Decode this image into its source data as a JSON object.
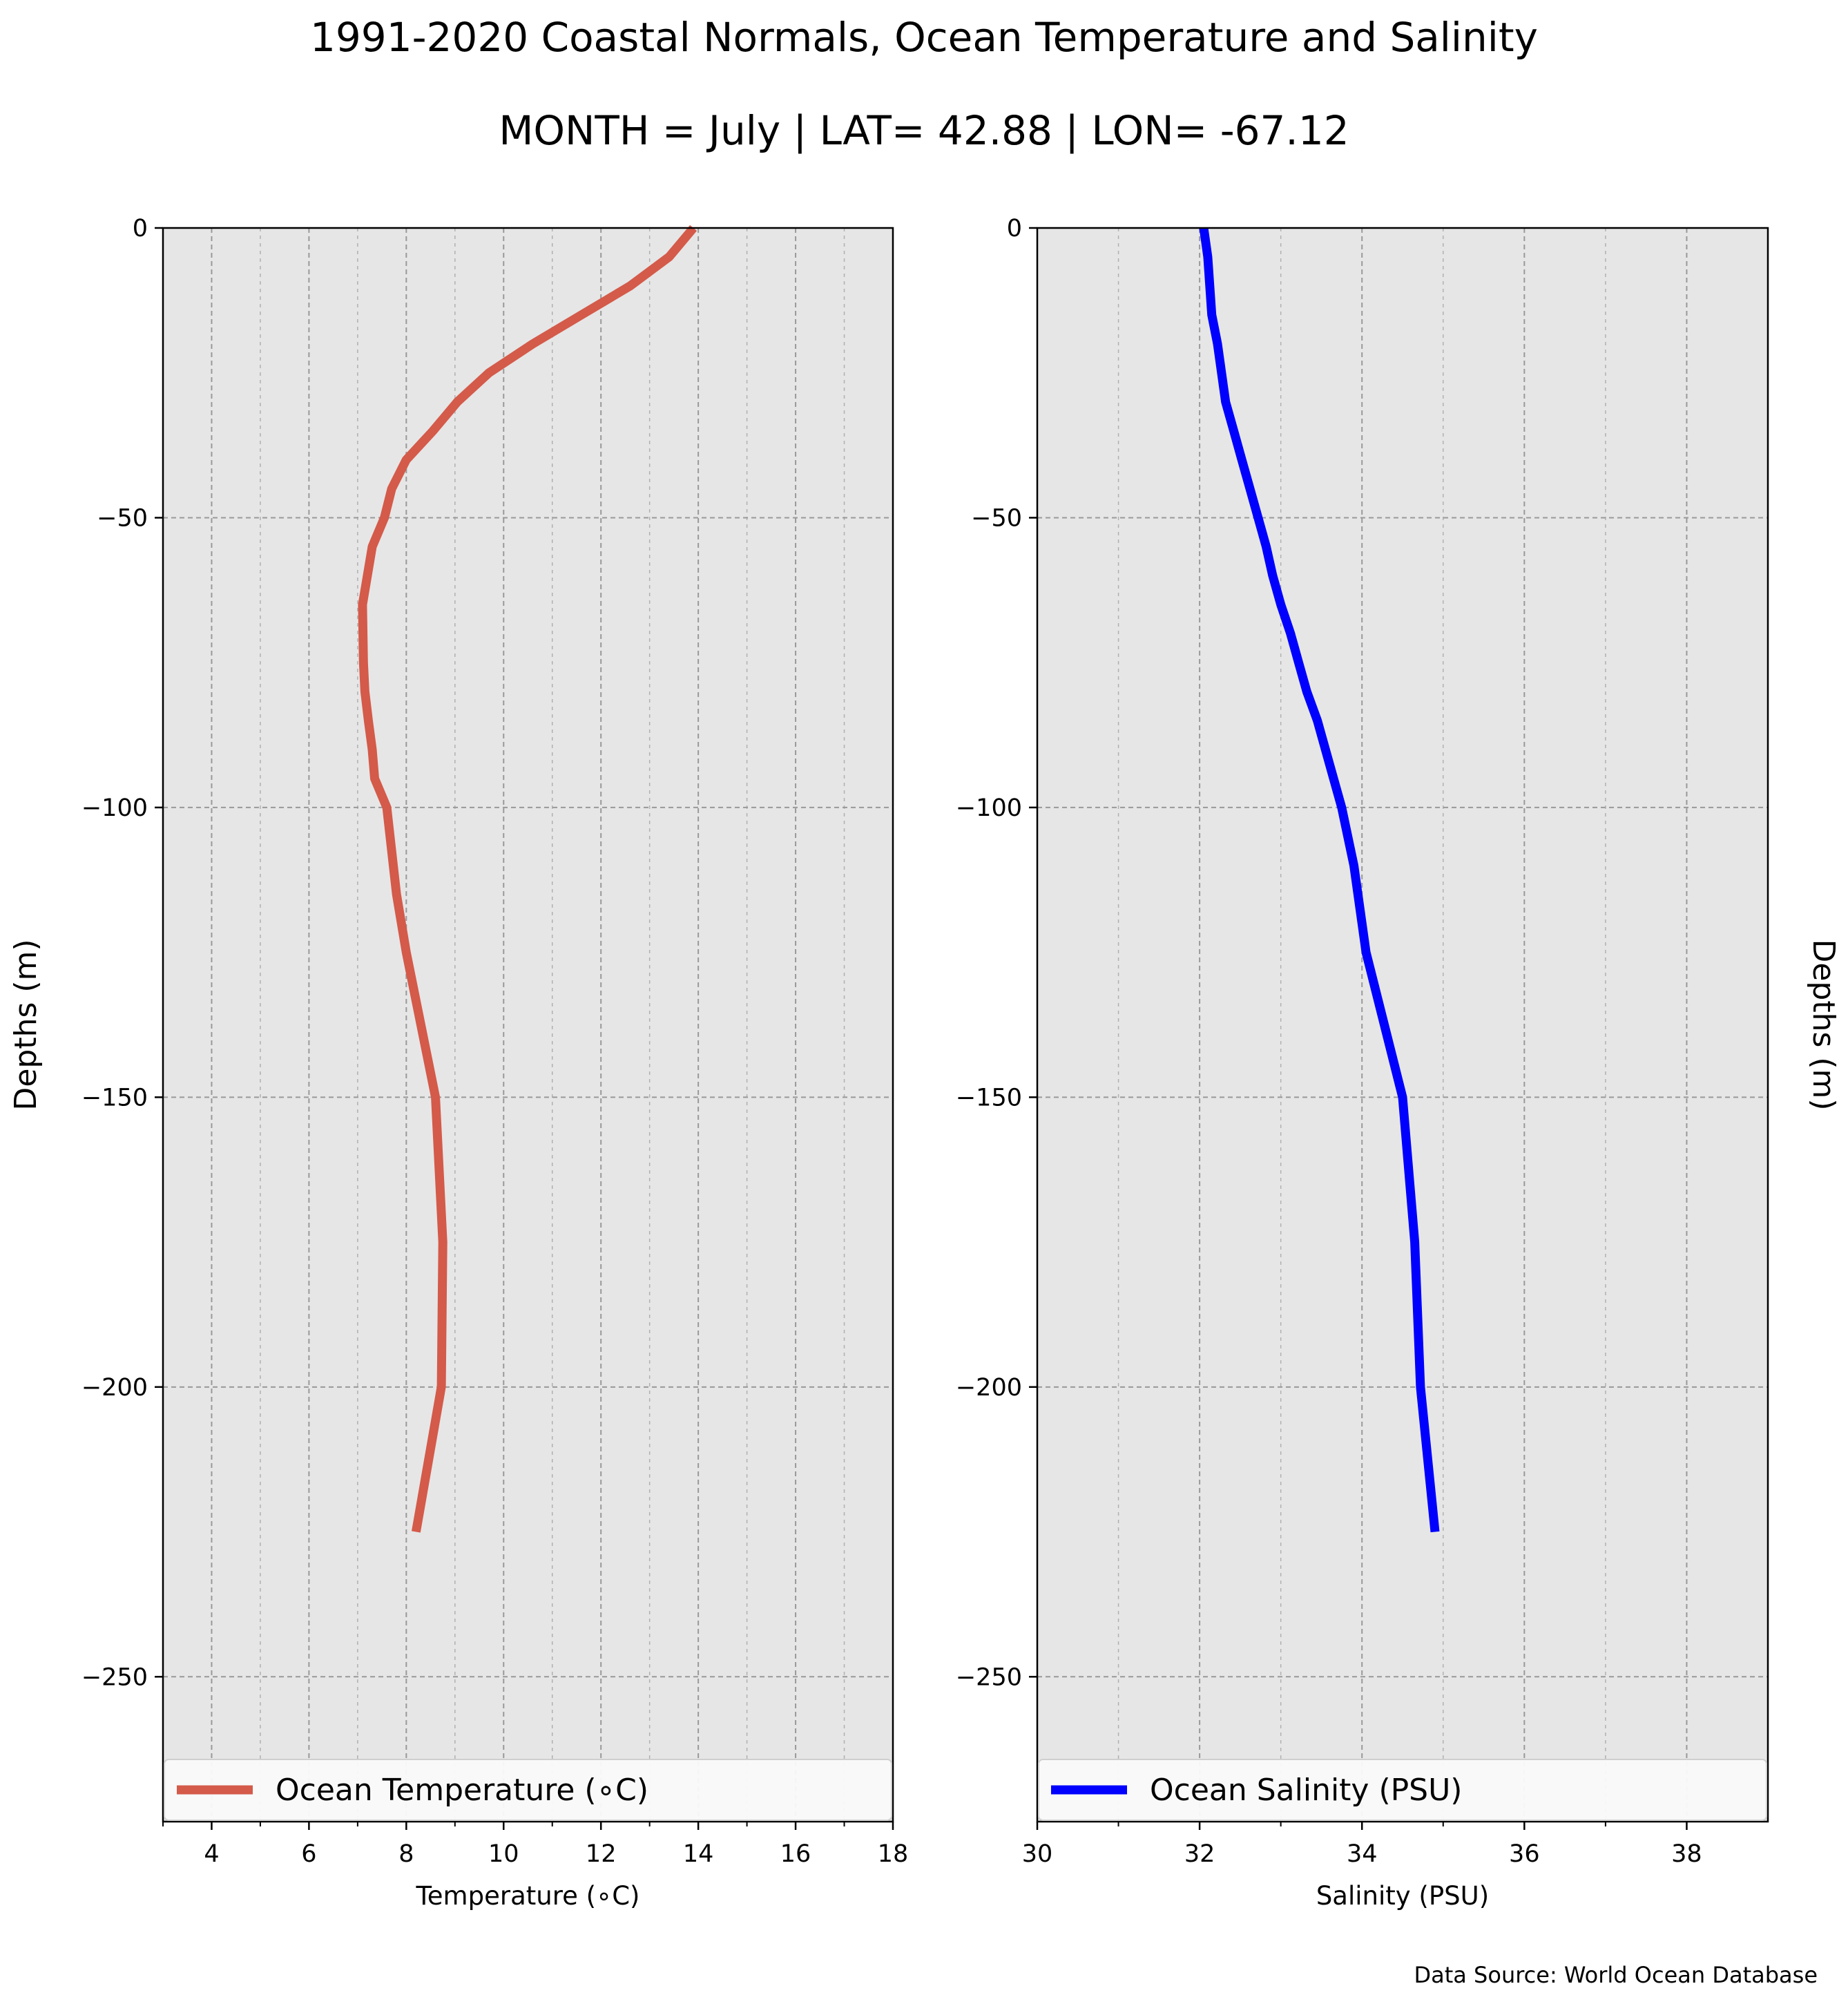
{
  "figure": {
    "title": "1991-2020 Coastal Normals, Ocean Temperature and Salinity",
    "subtitle": "MONTH = July | LAT= 42.88 | LON= -67.12",
    "source": "Data Source: World Ocean Database",
    "panel_background": "#e6e6e6",
    "grid_color": "#999999"
  },
  "chart_data": [
    {
      "type": "line",
      "xlabel": "Temperature ($^\\circ$C)",
      "xlabel_display": "Temperature (∘C)",
      "ylabel": "Depths (m)",
      "xlim": [
        3,
        18
      ],
      "ylim": [
        -275,
        0
      ],
      "xticks": [
        4,
        6,
        8,
        10,
        12,
        14,
        16,
        18
      ],
      "yticks": [
        0,
        -50,
        -100,
        -150,
        -200,
        -250
      ],
      "ytick_labels": [
        "0",
        "−50",
        "−100",
        "−150",
        "−200",
        "−250"
      ],
      "grid": true,
      "legend": "lower center",
      "series": [
        {
          "name": "Ocean Temperature ($^\\circ$C)",
          "legend_label": "Ocean Temperature (∘C)",
          "color": "#d45a4a",
          "x": [
            13.9,
            13.4,
            12.6,
            11.6,
            10.6,
            9.7,
            9.05,
            8.55,
            8.0,
            7.7,
            7.55,
            7.3,
            7.1,
            7.12,
            7.15,
            7.22,
            7.3,
            7.35,
            7.6,
            7.8,
            8.0,
            8.6,
            8.75,
            8.72,
            8.2
          ],
          "y": [
            0,
            -5,
            -10,
            -15,
            -20,
            -25,
            -30,
            -35,
            -40,
            -45,
            -50,
            -55,
            -65,
            -75,
            -80,
            -85,
            -90,
            -95,
            -100,
            -115,
            -125,
            -150,
            -175,
            -200,
            -225
          ]
        }
      ]
    },
    {
      "type": "line",
      "xlabel": "Salinity (PSU)",
      "ylabel": "Depths (m)",
      "xlim": [
        30,
        39
      ],
      "ylim": [
        -275,
        0
      ],
      "xticks": [
        30,
        32,
        34,
        36,
        38
      ],
      "yticks": [
        0,
        -50,
        -100,
        -150,
        -200,
        -250
      ],
      "ytick_labels": [
        "0",
        "−50",
        "−100",
        "−150",
        "−200",
        "−250"
      ],
      "grid": true,
      "legend": "lower center",
      "series": [
        {
          "name": "Ocean Salinity (PSU)",
          "color": "#0000ff",
          "x": [
            32.05,
            32.1,
            32.15,
            32.22,
            32.32,
            32.42,
            32.52,
            32.62,
            32.72,
            32.82,
            32.9,
            33.0,
            33.12,
            33.22,
            33.32,
            33.45,
            33.55,
            33.75,
            33.9,
            34.05,
            34.5,
            34.65,
            34.72,
            34.9
          ],
          "y": [
            0,
            -5,
            -15,
            -20,
            -30,
            -35,
            -40,
            -45,
            -50,
            -55,
            -60,
            -65,
            -70,
            -75,
            -80,
            -85,
            -90,
            -100,
            -110,
            -125,
            -150,
            -175,
            -200,
            -225
          ]
        }
      ]
    }
  ]
}
